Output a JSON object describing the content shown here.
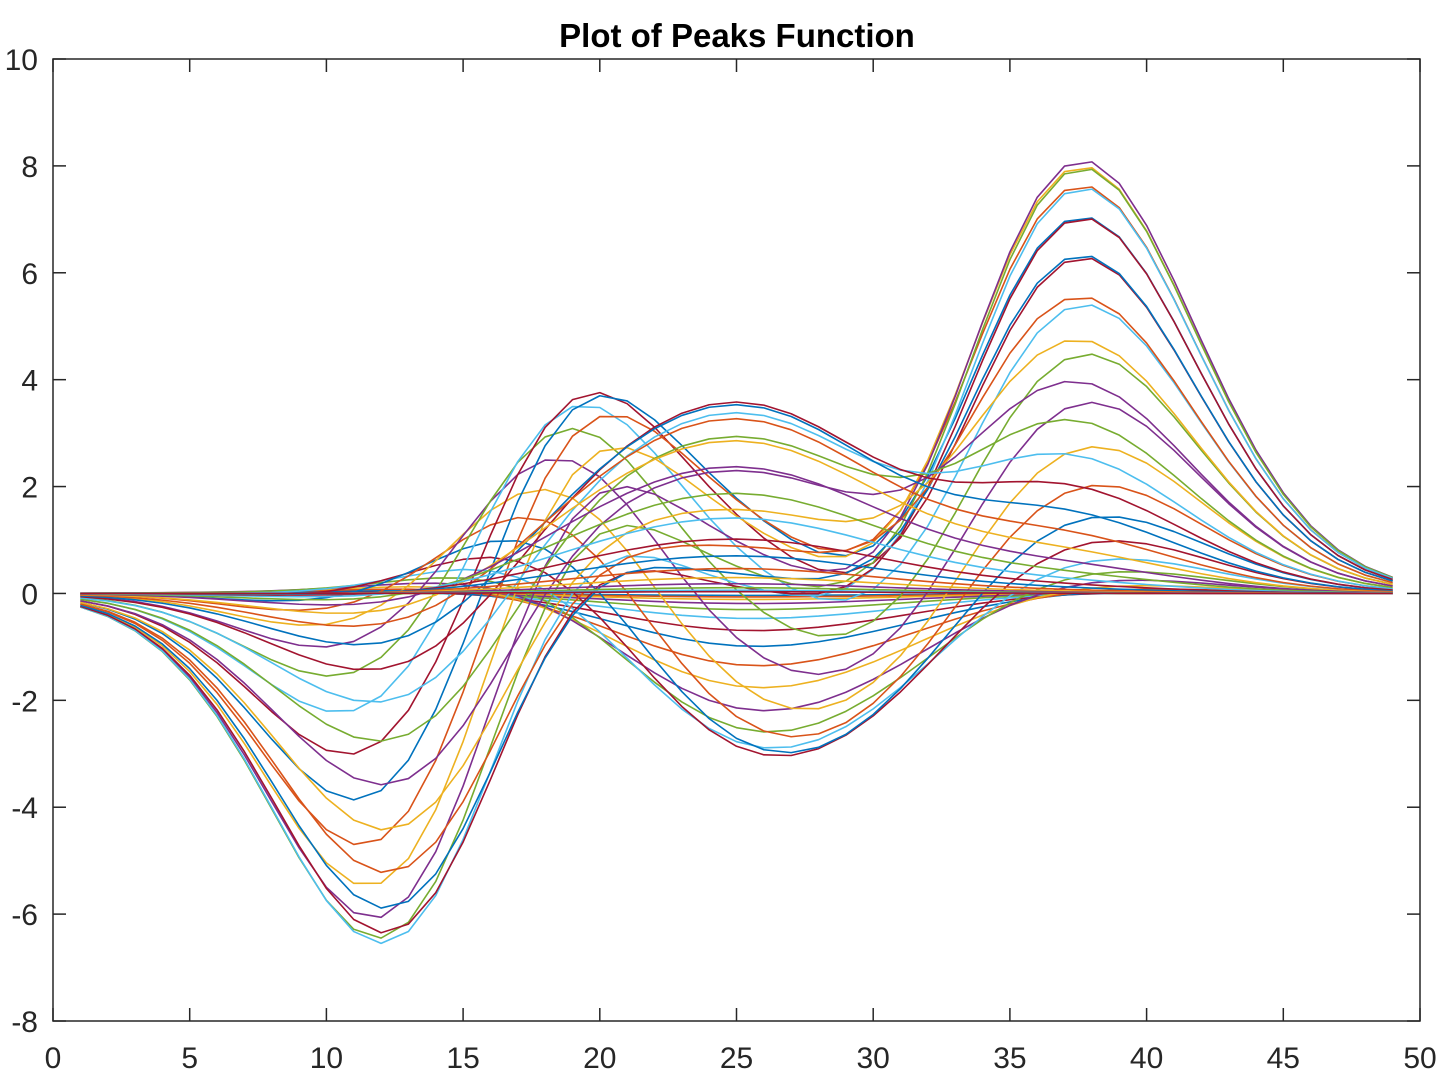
{
  "chart_data": {
    "type": "line",
    "title": "Plot of Peaks Function",
    "xlabel": "",
    "ylabel": "",
    "xlim": [
      0,
      50
    ],
    "ylim": [
      -8,
      10
    ],
    "xticks": [
      0,
      5,
      10,
      15,
      20,
      25,
      30,
      35,
      40,
      45,
      50
    ],
    "yticks": [
      -8,
      -6,
      -4,
      -2,
      0,
      2,
      4,
      6,
      8,
      10
    ],
    "grid": false,
    "legend": "none",
    "x_start": 1,
    "x_end": 49,
    "series_count": 49,
    "series_source": "MATLAB peaks(49): one line per matrix column, x = row index 1..49, z = 3(1-x)^2 e^(-x^2-(y+1)^2) - 10(x/5 - x^3 - y^5) e^(-x^2-y^2) - (1/3) e^(-(x+1)^2-y^2) on grid -3..3",
    "colors": [
      "#0072BD",
      "#D95319",
      "#EDB120",
      "#7E2F8E",
      "#77AC30",
      "#4DBEEE",
      "#A2142F"
    ],
    "annotated_extremes": {
      "max": 8.07,
      "max_at_x": 38,
      "min": -6.55,
      "min_at_x": 12
    }
  }
}
